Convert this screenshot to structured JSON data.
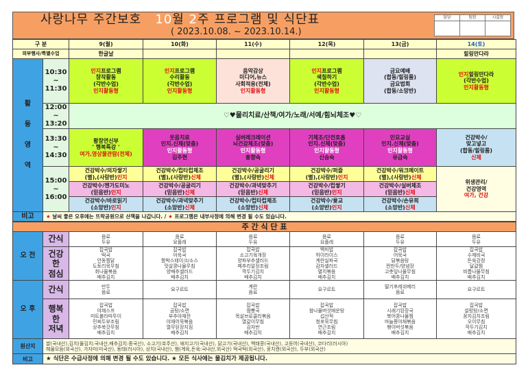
{
  "title": {
    "prefix": "사랑나무 주간보호",
    "month": "10",
    "month_suffix": "월",
    "week": "2",
    "week_suffix": "주 프로그램 및 식단표",
    "period": "( 2023.10.08. ~ 2023.10.14.)"
  },
  "approval": [
    "담당",
    "팀장",
    "시설장"
  ],
  "header": {
    "label": "구 분",
    "days": [
      "9(월)",
      "10(화)",
      "11(수)",
      "12(목)",
      "13(금)",
      "14(토)"
    ]
  },
  "special": {
    "label": "외부행사/특별수업",
    "values": [
      "한글날",
      "",
      "",
      "",
      "",
      "힐링만다라"
    ]
  },
  "activity_label": "활 동 영 역",
  "times": [
    "10:30 ~ 11:30",
    "12:00 ~ 13:20",
    "13:30 ~ 14:30",
    "15:00 ~ 16:00"
  ],
  "colors": {
    "orange": "#f79f63",
    "green": "#ccff33",
    "magenta": "#e040c0",
    "red": "#e01010",
    "blue": "#3fa3e3"
  },
  "am": [
    [
      [
        [
          "인지",
          "r"
        ],
        [
          "프로그램",
          ""
        ]
      ],
      [
        [
          "창작활동",
          ""
        ]
      ],
      [
        [
          "(각반수업)",
          ""
        ]
      ],
      [
        [
          "인지활동형",
          "r"
        ]
      ]
    ],
    [
      [
        [
          "인지",
          "r"
        ],
        [
          "프로그램",
          ""
        ]
      ],
      [
        [
          "수리활동",
          ""
        ]
      ],
      [
        [
          "(각반수업)",
          ""
        ]
      ],
      [
        [
          "인지활동형",
          "r"
        ]
      ]
    ],
    [
      [
        [
          "음악감상",
          ""
        ]
      ],
      [
        [
          "미디어,뉴스",
          ""
        ]
      ],
      [
        [
          "사회적응(전체)",
          ""
        ]
      ],
      [
        [
          "인지활동형",
          "r"
        ]
      ]
    ],
    [
      [
        [
          "인지",
          "r"
        ],
        [
          "프로그램",
          ""
        ]
      ],
      [
        [
          "색칠하기",
          ""
        ]
      ],
      [
        [
          "(각반수업)",
          ""
        ]
      ],
      [
        [
          "인지활동형",
          "r"
        ]
      ]
    ],
    [
      [
        [
          "금요예배",
          ""
        ]
      ],
      [
        [
          "(합동/힐링룸)",
          ""
        ]
      ],
      [
        [
          "금요법회",
          ""
        ]
      ],
      [
        [
          "(합동/소망반)",
          ""
        ]
      ]
    ],
    [
      [
        [
          "인지",
          "r"
        ],
        [
          "힐링만다라",
          ""
        ]
      ],
      [
        [
          "(각반수업)",
          ""
        ]
      ],
      [
        [
          "인지활동형",
          "r"
        ]
      ]
    ]
  ],
  "noon": "♡♥물리치료/산책/여가/노래/서예/힘뇌체조♥♡",
  "pm1": [
    [
      [
        [
          "황창연신부",
          ""
        ]
      ],
      [
        [
          "' 행복특강 '",
          ""
        ]
      ],
      [
        [
          "여가,영상물관람(전체)",
          "r"
        ]
      ]
    ],
    [
      [
        [
          "웃음치료",
          ""
        ]
      ],
      [
        [
          "인지.신체(맞춤)",
          ""
        ]
      ],
      [
        [
          "인지활동형",
          "wt"
        ]
      ],
      [
        [
          "김주현",
          ""
        ]
      ]
    ],
    [
      [
        [
          "실버레크레이션",
          ""
        ]
      ],
      [
        [
          "뇌건강체조(맞춤)",
          ""
        ]
      ],
      [
        [
          "인지활동형",
          "wt"
        ]
      ],
      [
        [
          "홍향숙",
          ""
        ]
      ]
    ],
    [
      [
        [
          "기체조/단전호흡",
          ""
        ]
      ],
      [
        [
          "인지.신체(맞춤)",
          ""
        ]
      ],
      [
        [
          "인지활동형",
          "wt"
        ]
      ],
      [
        [
          "신승숙",
          ""
        ]
      ]
    ],
    [
      [
        [
          "민요교실",
          ""
        ]
      ],
      [
        [
          "인지.신체(맞춤)",
          ""
        ]
      ],
      [
        [
          "인지활동형",
          "wt"
        ]
      ],
      [
        [
          "유금숙",
          ""
        ]
      ]
    ],
    [
      [
        [
          "건강박수/",
          ""
        ]
      ],
      [
        [
          "맞고넣고",
          ""
        ]
      ],
      [
        [
          "(합동/힐링룸)",
          ""
        ]
      ],
      [
        [
          "신체",
          "r"
        ]
      ]
    ]
  ],
  "pm2": [
    [
      [
        [
          [
            "건강박수/의자쌓기",
            ""
          ]
        ],
        [
          [
            "(별),(사랑반)",
            ""
          ],
          [
            "인지",
            "r"
          ]
        ]
      ],
      [
        [
          [
            "건강박수/컵타컵체조",
            ""
          ]
        ],
        [
          [
            "(별),(사랑반)",
            ""
          ],
          [
            "신체",
            "r"
          ]
        ]
      ],
      [
        [
          [
            "건강박수/공굴리기",
            ""
          ]
        ],
        [
          [
            "(별),(사랑반)",
            ""
          ],
          [
            "신체",
            "r"
          ]
        ]
      ],
      [
        [
          [
            "건강박수/퍼즐",
            ""
          ]
        ],
        [
          [
            "(별),(사랑반)",
            ""
          ],
          [
            "인지",
            "r"
          ]
        ]
      ],
      [
        [
          [
            "건강박수/워크메이트",
            ""
          ]
        ],
        [
          [
            "(별),(사랑반)",
            ""
          ],
          [
            "신체",
            "r"
          ]
        ]
      ]
    ],
    [
      [
        [
          [
            "건강박수/젠가도미노",
            ""
          ]
        ],
        [
          [
            "(믿음반)",
            ""
          ],
          [
            "인지",
            "r"
          ]
        ]
      ],
      [
        [
          [
            "건강박수/공굴리기",
            ""
          ]
        ],
        [
          [
            "(믿음반)",
            ""
          ],
          [
            "신체",
            "r"
          ]
        ]
      ],
      [
        [
          [
            "건강박수/과녁맞추기",
            ""
          ]
        ],
        [
          [
            "(믿음반)",
            ""
          ],
          [
            "신체",
            "r"
          ]
        ]
      ],
      [
        [
          [
            "건강박수/컵쌓기",
            ""
          ]
        ],
        [
          [
            "(믿음반)",
            ""
          ],
          [
            "인지",
            "r"
          ]
        ]
      ],
      [
        [
          [
            "건강박수/실버체조",
            ""
          ]
        ],
        [
          [
            "(믿음반)",
            ""
          ],
          [
            "신체",
            "r"
          ]
        ]
      ]
    ],
    [
      [
        [
          [
            "건강박수/바로읽기",
            ""
          ]
        ],
        [
          [
            "(소망반)",
            ""
          ],
          [
            "인지",
            "r"
          ]
        ]
      ],
      [
        [
          [
            "건강박수/과녁맞추기",
            ""
          ]
        ],
        [
          [
            "(소망반)",
            ""
          ],
          [
            "신체",
            "r"
          ]
        ]
      ],
      [
        [
          [
            "건강박수/컵타컵체조",
            ""
          ]
        ],
        [
          [
            "(소망반)",
            ""
          ],
          [
            "신체",
            "r"
          ]
        ]
      ],
      [
        [
          [
            "건강박수/윷교",
            ""
          ]
        ],
        [
          [
            "(소망반)",
            ""
          ],
          [
            "인지",
            "r"
          ]
        ]
      ],
      [
        [
          [
            "건강박수/손유희",
            ""
          ]
        ],
        [
          [
            "(소망반)",
            ""
          ],
          [
            "신체",
            "r"
          ]
        ]
      ]
    ]
  ],
  "pm2_sat": [
    [
      [
        "위생관리/",
        ""
      ]
    ],
    [
      [
        "건강영역",
        ""
      ]
    ],
    [
      [
        "여가, 건강",
        "r"
      ]
    ]
  ],
  "remark": {
    "label": "비고",
    "text": [
      [
        "★ ",
        "r"
      ],
      [
        "날씨 좋은 오후에는 뜨락공원으로 산책을 나갑니다. / ",
        ""
      ],
      [
        "★ ",
        "r"
      ],
      [
        "프로그램은 내부사정에 의해 변경 될 수도 있습니다.",
        ""
      ]
    ]
  },
  "menu_title": "주 간 식 단 표",
  "meals": {
    "am_label": "오 전",
    "pm_label": "오 후",
    "snack_label": "간식",
    "lunch_label": "건강 한 점심",
    "dinner_label": "행복 한 저녁",
    "am_snack": [
      [
        "음료",
        "두유"
      ],
      [
        "음료",
        "요플레"
      ],
      [
        "음료",
        "두유"
      ],
      [
        "음료",
        "요플레"
      ],
      [
        "음료",
        "두유"
      ],
      [
        "음료",
        "두유"
      ]
    ],
    "lunch": [
      [
        "잡곡밥",
        "떡국",
        "안동찜닭",
        "도토리묵무침",
        "취나물볶음",
        "배추김치"
      ],
      [
        "잡곡밥",
        "아욱국",
        "함박스테이크/소스",
        "맛살콩나물무침",
        "양배추샐러드",
        "배추김치"
      ],
      [
        "잡곡밥",
        "소고기육개장",
        "양파부추샐러드",
        "메추리알장조림",
        "깍두기김치",
        "배추김치"
      ],
      [
        "백미밥",
        "하이라이스",
        "계란실파국",
        "감자샐러드",
        "멸치볶음",
        "배추김치"
      ],
      [
        "잡곡밥",
        "어묵국",
        "닭볶음탕",
        "찐만두/양념장",
        "고춧잎나물무침",
        "배추김치"
      ],
      [
        "잡곡밥",
        "수제비국",
        "돈육강정",
        "달걀찜",
        "비름나물무침",
        "배추김치"
      ]
    ],
    "pm_snack": [
      [
        "만두",
        "음료"
      ],
      [
        "요구르트"
      ],
      [
        "계란",
        "음료"
      ],
      [
        "요구르트"
      ],
      [
        "딸기후레쉬베리",
        "음료"
      ],
      [
        "요구르트"
      ]
    ],
    "dinner": [
      [
        "잡곡밥",
        "야채스프",
        "미트볼라따뚜이",
        "민찌두부조림",
        "상추쑥갓무침",
        "배추김치"
      ],
      [
        "잡곡밥",
        "곰탕/소면",
        "부추야채전",
        "야채어묵볶음",
        "열무된장지짐",
        "배추김치"
      ],
      [
        "잡곡밥",
        "짬뽕국",
        "목살브로콜리볶음",
        "열갈이무침",
        "김자반",
        "배추김치"
      ],
      [
        "잡곡밥",
        "참나물버섯매운탕",
        "섭산적",
        "청포묵무침",
        "연근조림",
        "배추김치"
      ],
      [
        "잡곡밥",
        "시래기된장국",
        "북어콩나물찜",
        "마늘쫑야채볶음",
        "팽이버섯볶음",
        "배추김치"
      ],
      [
        "잡곡밥",
        "설렁탕/소면",
        "꽁치김치조림",
        "오이무침",
        "깍두기김치",
        "배추김치"
      ]
    ]
  },
  "origin": {
    "label": "원산지",
    "lines": [
      "쌀(국내산),김치(물김치:국내산,배추김치:중국산), 소고기(호주산), 돼지고기(국내산), 닭고기(국내산), 백태콩(국내산), 고등어(국내산), 코다리(러시아)",
      "해물모듬(외국산), 가자미(미국산), 동태(러시아), 상치(국내산), 햄(계육,돈육:국내산,외국산) 떡국떡(외국산), 꽁치캔(외국산), 두부(외국산)"
    ]
  },
  "meal_remark": {
    "label": "비고",
    "text": "★ 식단은 수급사정에 의해 변경 될 수도 있습니다. ★ 모든 식사에는 물김치가 제공됩니다."
  }
}
